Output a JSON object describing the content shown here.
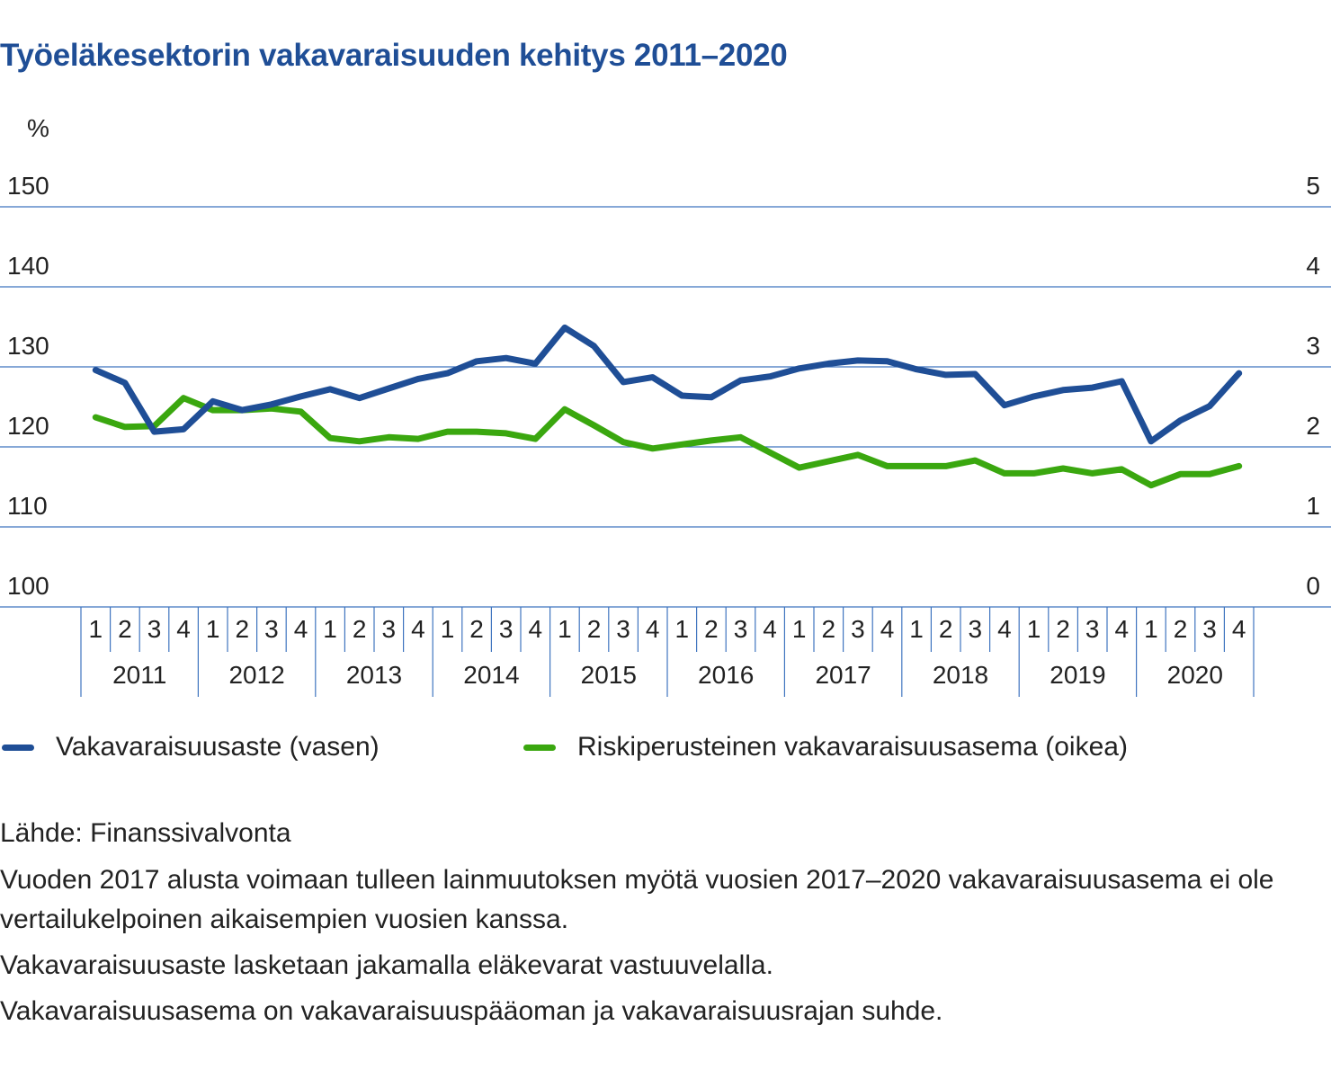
{
  "title": "Työeläkesektorin vakavaraisuuden kehitys 2011–2020",
  "colors": {
    "blue": "#1f4e96",
    "green": "#3aa70f",
    "grid": "#3f74bf"
  },
  "chart_data": {
    "type": "line",
    "title": "Työeläkesektorin vakavaraisuuden kehitys 2011–2020",
    "ylabel_left": "%",
    "ylim_left": [
      100,
      150
    ],
    "yticks_left": [
      "100",
      "110",
      "120",
      "130",
      "140",
      "150"
    ],
    "ylim_right": [
      0,
      5
    ],
    "yticks_right": [
      "0",
      "1",
      "2",
      "3",
      "4",
      "5"
    ],
    "quarters": [
      "1",
      "2",
      "3",
      "4"
    ],
    "years": [
      "2011",
      "2012",
      "2013",
      "2014",
      "2015",
      "2016",
      "2017",
      "2018",
      "2019",
      "2020"
    ],
    "grid": true,
    "legend_position": "bottom",
    "series": [
      {
        "name": "Vakavaraisuusaste (vasen)",
        "axis": "left",
        "color": "#1f4e96",
        "values": [
          129.6,
          128.0,
          121.9,
          122.2,
          125.7,
          124.6,
          125.3,
          126.3,
          127.2,
          126.1,
          127.3,
          128.5,
          129.2,
          130.7,
          131.1,
          130.4,
          134.9,
          132.6,
          128.1,
          128.7,
          126.4,
          126.2,
          128.3,
          128.8,
          129.8,
          130.4,
          130.8,
          130.7,
          129.7,
          129.0,
          129.1,
          125.2,
          126.3,
          127.1,
          127.4,
          128.2,
          120.7,
          123.3,
          125.1,
          129.2
        ]
      },
      {
        "name": "Riskiperusteinen vakavaraisuusasema (oikea)",
        "axis": "right",
        "color": "#3aa70f",
        "values": [
          2.37,
          2.25,
          2.26,
          2.61,
          2.46,
          2.46,
          2.48,
          2.44,
          2.11,
          2.07,
          2.12,
          2.1,
          2.19,
          2.19,
          2.17,
          2.1,
          2.47,
          2.27,
          2.06,
          1.98,
          2.03,
          2.08,
          2.12,
          1.93,
          1.74,
          1.82,
          1.9,
          1.76,
          1.76,
          1.76,
          1.83,
          1.67,
          1.67,
          1.73,
          1.67,
          1.72,
          1.52,
          1.66,
          1.66,
          1.76
        ]
      }
    ]
  },
  "notes": {
    "source": "Lähde: Finanssivalvonta",
    "note1": "Vuoden 2017 alusta voimaan tulleen lainmuutoksen myötä vuosien 2017–2020 vakavaraisuusasema ei ole vertailukelpoinen aikaisempien vuosien kanssa.",
    "note2": "Vakavaraisuusaste lasketaan jakamalla eläkevarat vastuuvelalla.",
    "note3": "Vakavaraisuusasema on vakavaraisuuspääoman ja vakavaraisuusrajan suhde."
  }
}
